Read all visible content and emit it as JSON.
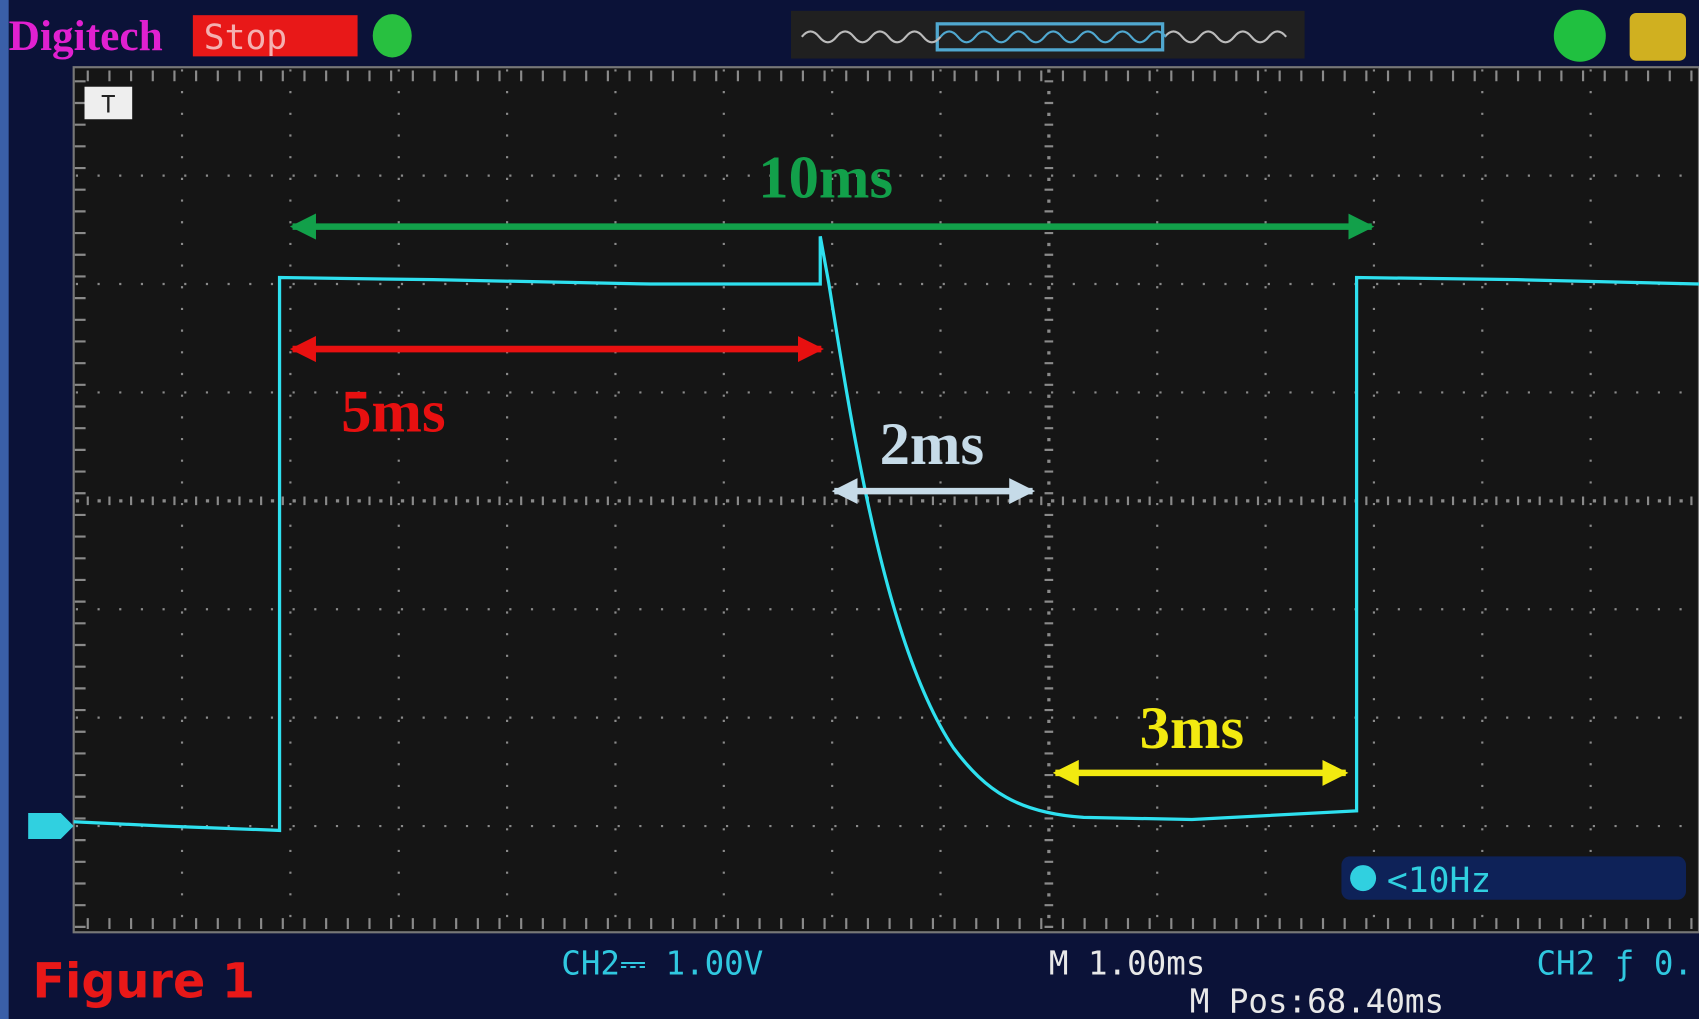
{
  "header": {
    "brand": "Digitech",
    "status": "Stop",
    "trigger_marker": "T"
  },
  "annotations": [
    {
      "label": "10ms",
      "color": "#12a04a"
    },
    {
      "label": "5ms",
      "color": "#e81010"
    },
    {
      "label": "2ms",
      "color": "#c6dbe8"
    },
    {
      "label": "3ms",
      "color": "#f2ea10"
    }
  ],
  "trigger_readout": "<10Hz",
  "footer": {
    "channel_scale": "CH2⎓ 1.00V",
    "timebase": "M 1.00ms",
    "position": "M Pos:68.40ms",
    "trigger": "CH2 ƒ 0.",
    "figure_label": "Figure 1"
  }
}
